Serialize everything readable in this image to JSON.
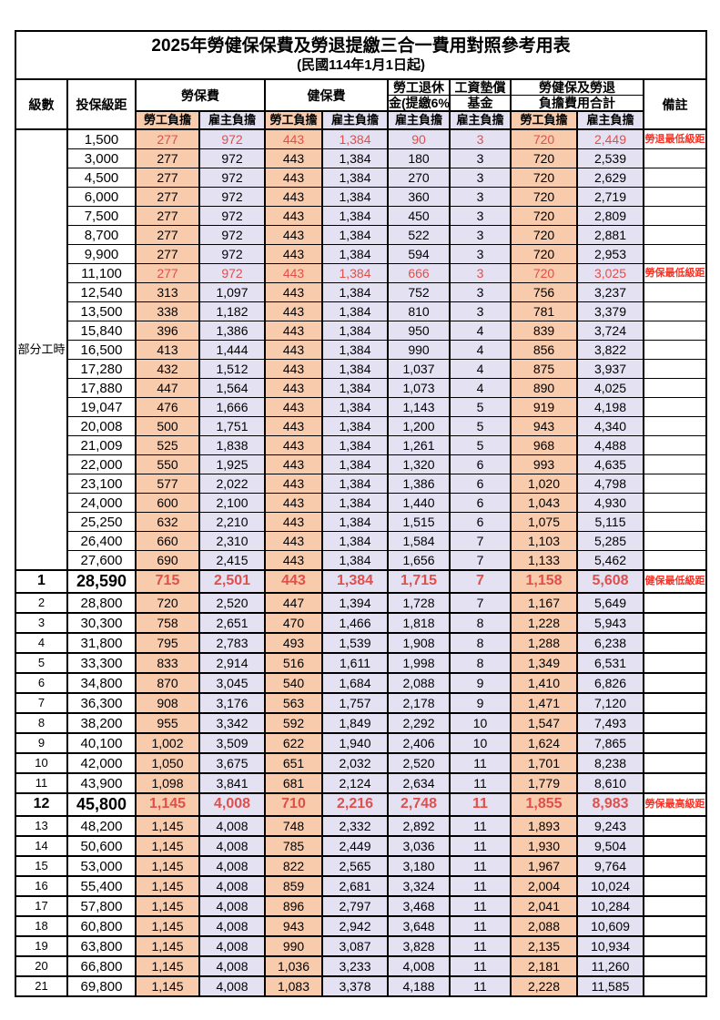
{
  "title": "2025年勞健保保費及勞退提繳三合一費用對照參考用表",
  "subtitle": "(民國114年1月1日起)",
  "headers": {
    "level": "級數",
    "bracket": "投保級距",
    "labor_insurance": "勞保費",
    "health_insurance": "健保費",
    "pension_line1": "勞工退休",
    "pension_line2": "金(提繳6%)",
    "wage_fund_line1": "工資墊償",
    "wage_fund_line2": "基金",
    "total_line1": "勞健保及勞退",
    "total_line2": "負擔費用合計",
    "remark": "備註",
    "employee": "勞工負擔",
    "employer": "雇主負擔"
  },
  "colors": {
    "employee_fill": "#F8CBAD",
    "employer_fill": "#E4E1F3",
    "red_value": "#E0504A",
    "red_remark": "#F93224",
    "border": "#000000"
  },
  "table": {
    "parttime_label": "部分工時",
    "rows": [
      {
        "section": "parttime",
        "level": "",
        "bracket": "1,500",
        "values": [
          "277",
          "972",
          "443",
          "1,384",
          "90",
          "3",
          "720",
          "2,449"
        ],
        "remark": "勞退最低級距",
        "red": true,
        "big": false
      },
      {
        "section": "parttime",
        "level": "",
        "bracket": "3,000",
        "values": [
          "277",
          "972",
          "443",
          "1,384",
          "180",
          "3",
          "720",
          "2,539"
        ],
        "remark": "",
        "red": false,
        "big": false
      },
      {
        "section": "parttime",
        "level": "",
        "bracket": "4,500",
        "values": [
          "277",
          "972",
          "443",
          "1,384",
          "270",
          "3",
          "720",
          "2,629"
        ],
        "remark": "",
        "red": false,
        "big": false
      },
      {
        "section": "parttime",
        "level": "",
        "bracket": "6,000",
        "values": [
          "277",
          "972",
          "443",
          "1,384",
          "360",
          "3",
          "720",
          "2,719"
        ],
        "remark": "",
        "red": false,
        "big": false
      },
      {
        "section": "parttime",
        "level": "",
        "bracket": "7,500",
        "values": [
          "277",
          "972",
          "443",
          "1,384",
          "450",
          "3",
          "720",
          "2,809"
        ],
        "remark": "",
        "red": false,
        "big": false
      },
      {
        "section": "parttime",
        "level": "",
        "bracket": "8,700",
        "values": [
          "277",
          "972",
          "443",
          "1,384",
          "522",
          "3",
          "720",
          "2,881"
        ],
        "remark": "",
        "red": false,
        "big": false
      },
      {
        "section": "parttime",
        "level": "",
        "bracket": "9,900",
        "values": [
          "277",
          "972",
          "443",
          "1,384",
          "594",
          "3",
          "720",
          "2,953"
        ],
        "remark": "",
        "red": false,
        "big": false
      },
      {
        "section": "parttime",
        "level": "",
        "bracket": "11,100",
        "values": [
          "277",
          "972",
          "443",
          "1,384",
          "666",
          "3",
          "720",
          "3,025"
        ],
        "remark": "勞保最低級距",
        "red": true,
        "big": false
      },
      {
        "section": "parttime",
        "level": "",
        "bracket": "12,540",
        "values": [
          "313",
          "1,097",
          "443",
          "1,384",
          "752",
          "3",
          "756",
          "3,237"
        ],
        "remark": "",
        "red": false,
        "big": false
      },
      {
        "section": "parttime",
        "level": "",
        "bracket": "13,500",
        "values": [
          "338",
          "1,182",
          "443",
          "1,384",
          "810",
          "3",
          "781",
          "3,379"
        ],
        "remark": "",
        "red": false,
        "big": false
      },
      {
        "section": "parttime",
        "level": "",
        "bracket": "15,840",
        "values": [
          "396",
          "1,386",
          "443",
          "1,384",
          "950",
          "4",
          "839",
          "3,724"
        ],
        "remark": "",
        "red": false,
        "big": false
      },
      {
        "section": "parttime",
        "level": "",
        "bracket": "16,500",
        "values": [
          "413",
          "1,444",
          "443",
          "1,384",
          "990",
          "4",
          "856",
          "3,822"
        ],
        "remark": "",
        "red": false,
        "big": false
      },
      {
        "section": "parttime",
        "level": "",
        "bracket": "17,280",
        "values": [
          "432",
          "1,512",
          "443",
          "1,384",
          "1,037",
          "4",
          "875",
          "3,937"
        ],
        "remark": "",
        "red": false,
        "big": false
      },
      {
        "section": "parttime",
        "level": "",
        "bracket": "17,880",
        "values": [
          "447",
          "1,564",
          "443",
          "1,384",
          "1,073",
          "4",
          "890",
          "4,025"
        ],
        "remark": "",
        "red": false,
        "big": false
      },
      {
        "section": "parttime",
        "level": "",
        "bracket": "19,047",
        "values": [
          "476",
          "1,666",
          "443",
          "1,384",
          "1,143",
          "5",
          "919",
          "4,198"
        ],
        "remark": "",
        "red": false,
        "big": false
      },
      {
        "section": "parttime",
        "level": "",
        "bracket": "20,008",
        "values": [
          "500",
          "1,751",
          "443",
          "1,384",
          "1,200",
          "5",
          "943",
          "4,340"
        ],
        "remark": "",
        "red": false,
        "big": false
      },
      {
        "section": "parttime",
        "level": "",
        "bracket": "21,009",
        "values": [
          "525",
          "1,838",
          "443",
          "1,384",
          "1,261",
          "5",
          "968",
          "4,488"
        ],
        "remark": "",
        "red": false,
        "big": false
      },
      {
        "section": "parttime",
        "level": "",
        "bracket": "22,000",
        "values": [
          "550",
          "1,925",
          "443",
          "1,384",
          "1,320",
          "6",
          "993",
          "4,635"
        ],
        "remark": "",
        "red": false,
        "big": false
      },
      {
        "section": "parttime",
        "level": "",
        "bracket": "23,100",
        "values": [
          "577",
          "2,022",
          "443",
          "1,384",
          "1,386",
          "6",
          "1,020",
          "4,798"
        ],
        "remark": "",
        "red": false,
        "big": false
      },
      {
        "section": "parttime",
        "level": "",
        "bracket": "24,000",
        "values": [
          "600",
          "2,100",
          "443",
          "1,384",
          "1,440",
          "6",
          "1,043",
          "4,930"
        ],
        "remark": "",
        "red": false,
        "big": false
      },
      {
        "section": "parttime",
        "level": "",
        "bracket": "25,250",
        "values": [
          "632",
          "2,210",
          "443",
          "1,384",
          "1,515",
          "6",
          "1,075",
          "5,115"
        ],
        "remark": "",
        "red": false,
        "big": false
      },
      {
        "section": "parttime",
        "level": "",
        "bracket": "26,400",
        "values": [
          "660",
          "2,310",
          "443",
          "1,384",
          "1,584",
          "7",
          "1,103",
          "5,285"
        ],
        "remark": "",
        "red": false,
        "big": false
      },
      {
        "section": "parttime",
        "level": "",
        "bracket": "27,600",
        "values": [
          "690",
          "2,415",
          "443",
          "1,384",
          "1,656",
          "7",
          "1,133",
          "5,462"
        ],
        "remark": "",
        "red": false,
        "big": false
      },
      {
        "section": "level",
        "level": "1",
        "bracket": "28,590",
        "values": [
          "715",
          "2,501",
          "443",
          "1,384",
          "1,715",
          "7",
          "1,158",
          "5,608"
        ],
        "remark": "健保最低級距",
        "red": true,
        "big": true
      },
      {
        "section": "level",
        "level": "2",
        "bracket": "28,800",
        "values": [
          "720",
          "2,520",
          "447",
          "1,394",
          "1,728",
          "7",
          "1,167",
          "5,649"
        ],
        "remark": "",
        "red": false,
        "big": false
      },
      {
        "section": "level",
        "level": "3",
        "bracket": "30,300",
        "values": [
          "758",
          "2,651",
          "470",
          "1,466",
          "1,818",
          "8",
          "1,228",
          "5,943"
        ],
        "remark": "",
        "red": false,
        "big": false
      },
      {
        "section": "level",
        "level": "4",
        "bracket": "31,800",
        "values": [
          "795",
          "2,783",
          "493",
          "1,539",
          "1,908",
          "8",
          "1,288",
          "6,238"
        ],
        "remark": "",
        "red": false,
        "big": false
      },
      {
        "section": "level",
        "level": "5",
        "bracket": "33,300",
        "values": [
          "833",
          "2,914",
          "516",
          "1,611",
          "1,998",
          "8",
          "1,349",
          "6,531"
        ],
        "remark": "",
        "red": false,
        "big": false
      },
      {
        "section": "level",
        "level": "6",
        "bracket": "34,800",
        "values": [
          "870",
          "3,045",
          "540",
          "1,684",
          "2,088",
          "9",
          "1,410",
          "6,826"
        ],
        "remark": "",
        "red": false,
        "big": false
      },
      {
        "section": "level",
        "level": "7",
        "bracket": "36,300",
        "values": [
          "908",
          "3,176",
          "563",
          "1,757",
          "2,178",
          "9",
          "1,471",
          "7,120"
        ],
        "remark": "",
        "red": false,
        "big": false
      },
      {
        "section": "level",
        "level": "8",
        "bracket": "38,200",
        "values": [
          "955",
          "3,342",
          "592",
          "1,849",
          "2,292",
          "10",
          "1,547",
          "7,493"
        ],
        "remark": "",
        "red": false,
        "big": false
      },
      {
        "section": "level",
        "level": "9",
        "bracket": "40,100",
        "values": [
          "1,002",
          "3,509",
          "622",
          "1,940",
          "2,406",
          "10",
          "1,624",
          "7,865"
        ],
        "remark": "",
        "red": false,
        "big": false
      },
      {
        "section": "level",
        "level": "10",
        "bracket": "42,000",
        "values": [
          "1,050",
          "3,675",
          "651",
          "2,032",
          "2,520",
          "11",
          "1,701",
          "8,238"
        ],
        "remark": "",
        "red": false,
        "big": false
      },
      {
        "section": "level",
        "level": "11",
        "bracket": "43,900",
        "values": [
          "1,098",
          "3,841",
          "681",
          "2,124",
          "2,634",
          "11",
          "1,779",
          "8,610"
        ],
        "remark": "",
        "red": false,
        "big": false
      },
      {
        "section": "level",
        "level": "12",
        "bracket": "45,800",
        "values": [
          "1,145",
          "4,008",
          "710",
          "2,216",
          "2,748",
          "11",
          "1,855",
          "8,983"
        ],
        "remark": "勞保最高級距",
        "red": true,
        "big": true
      },
      {
        "section": "level",
        "level": "13",
        "bracket": "48,200",
        "values": [
          "1,145",
          "4,008",
          "748",
          "2,332",
          "2,892",
          "11",
          "1,893",
          "9,243"
        ],
        "remark": "",
        "red": false,
        "big": false
      },
      {
        "section": "level",
        "level": "14",
        "bracket": "50,600",
        "values": [
          "1,145",
          "4,008",
          "785",
          "2,449",
          "3,036",
          "11",
          "1,930",
          "9,504"
        ],
        "remark": "",
        "red": false,
        "big": false
      },
      {
        "section": "level",
        "level": "15",
        "bracket": "53,000",
        "values": [
          "1,145",
          "4,008",
          "822",
          "2,565",
          "3,180",
          "11",
          "1,967",
          "9,764"
        ],
        "remark": "",
        "red": false,
        "big": false
      },
      {
        "section": "level",
        "level": "16",
        "bracket": "55,400",
        "values": [
          "1,145",
          "4,008",
          "859",
          "2,681",
          "3,324",
          "11",
          "2,004",
          "10,024"
        ],
        "remark": "",
        "red": false,
        "big": false
      },
      {
        "section": "level",
        "level": "17",
        "bracket": "57,800",
        "values": [
          "1,145",
          "4,008",
          "896",
          "2,797",
          "3,468",
          "11",
          "2,041",
          "10,284"
        ],
        "remark": "",
        "red": false,
        "big": false
      },
      {
        "section": "level",
        "level": "18",
        "bracket": "60,800",
        "values": [
          "1,145",
          "4,008",
          "943",
          "2,942",
          "3,648",
          "11",
          "2,088",
          "10,609"
        ],
        "remark": "",
        "red": false,
        "big": false
      },
      {
        "section": "level",
        "level": "19",
        "bracket": "63,800",
        "values": [
          "1,145",
          "4,008",
          "990",
          "3,087",
          "3,828",
          "11",
          "2,135",
          "10,934"
        ],
        "remark": "",
        "red": false,
        "big": false
      },
      {
        "section": "level",
        "level": "20",
        "bracket": "66,800",
        "values": [
          "1,145",
          "4,008",
          "1,036",
          "3,233",
          "4,008",
          "11",
          "2,181",
          "11,260"
        ],
        "remark": "",
        "red": false,
        "big": false
      },
      {
        "section": "level",
        "level": "21",
        "bracket": "69,800",
        "values": [
          "1,145",
          "4,008",
          "1,083",
          "3,378",
          "4,188",
          "11",
          "2,228",
          "11,585"
        ],
        "remark": "",
        "red": false,
        "big": false
      }
    ]
  }
}
